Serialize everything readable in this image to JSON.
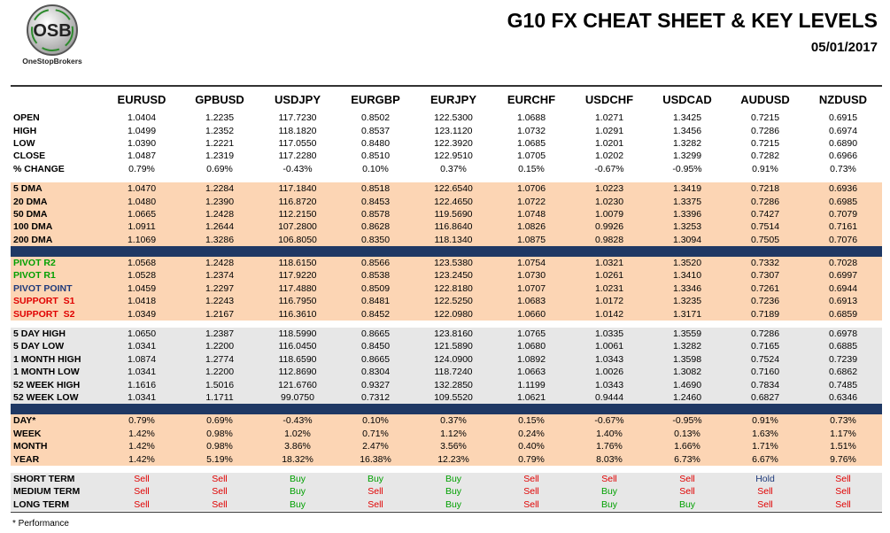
{
  "header": {
    "logo_text": "OSB",
    "logo_caption": "OneStopBrokers",
    "title": "G10 FX CHEAT SHEET & KEY LEVELS",
    "date": "05/01/2017"
  },
  "table": {
    "columns": [
      "EURUSD",
      "GPBUSD",
      "USDJPY",
      "EURGBP",
      "EURJPY",
      "EURCHF",
      "USDCHF",
      "USDCAD",
      "AUDUSD",
      "NZDUSD"
    ],
    "sections": [
      {
        "rows": [
          {
            "label": "OPEN",
            "values": [
              "1.0404",
              "1.2235",
              "117.7230",
              "0.8502",
              "122.5300",
              "1.0688",
              "1.0271",
              "1.3425",
              "0.7215",
              "0.6915"
            ]
          },
          {
            "label": "HIGH",
            "values": [
              "1.0499",
              "1.2352",
              "118.1820",
              "0.8537",
              "123.1120",
              "1.0732",
              "1.0291",
              "1.3456",
              "0.7286",
              "0.6974"
            ]
          },
          {
            "label": "LOW",
            "values": [
              "1.0390",
              "1.2221",
              "117.0550",
              "0.8480",
              "122.3920",
              "1.0685",
              "1.0201",
              "1.3282",
              "0.7215",
              "0.6890"
            ]
          },
          {
            "label": "CLOSE",
            "values": [
              "1.0487",
              "1.2319",
              "117.2280",
              "0.8510",
              "122.9510",
              "1.0705",
              "1.0202",
              "1.3299",
              "0.7282",
              "0.6966"
            ]
          },
          {
            "label": "% CHANGE",
            "values": [
              "0.79%",
              "0.69%",
              "-0.43%",
              "0.10%",
              "0.37%",
              "0.15%",
              "-0.67%",
              "-0.95%",
              "0.91%",
              "0.73%"
            ]
          }
        ]
      },
      {
        "rows": [
          {
            "label": "5 DMA",
            "values": [
              "1.0470",
              "1.2284",
              "117.1840",
              "0.8518",
              "122.6540",
              "1.0706",
              "1.0223",
              "1.3419",
              "0.7218",
              "0.6936"
            ]
          },
          {
            "label": "20 DMA",
            "values": [
              "1.0480",
              "1.2390",
              "116.8720",
              "0.8453",
              "122.4650",
              "1.0722",
              "1.0230",
              "1.3375",
              "0.7286",
              "0.6985"
            ]
          },
          {
            "label": "50 DMA",
            "values": [
              "1.0665",
              "1.2428",
              "112.2150",
              "0.8578",
              "119.5690",
              "1.0748",
              "1.0079",
              "1.3396",
              "0.7427",
              "0.7079"
            ]
          },
          {
            "label": "100 DMA",
            "values": [
              "1.0911",
              "1.2644",
              "107.2800",
              "0.8628",
              "116.8640",
              "1.0826",
              "0.9926",
              "1.3253",
              "0.7514",
              "0.7161"
            ]
          },
          {
            "label": "200 DMA",
            "values": [
              "1.1069",
              "1.3286",
              "106.8050",
              "0.8350",
              "118.1340",
              "1.0875",
              "0.9828",
              "1.3094",
              "0.7505",
              "0.7076"
            ]
          }
        ]
      },
      {
        "rows": [
          {
            "label": "PIVOT R2",
            "color": "#00a000",
            "values": [
              "1.0568",
              "1.2428",
              "118.6150",
              "0.8566",
              "123.5380",
              "1.0754",
              "1.0321",
              "1.3520",
              "0.7332",
              "0.7028"
            ]
          },
          {
            "label": "PIVOT R1",
            "color": "#00a000",
            "values": [
              "1.0528",
              "1.2374",
              "117.9220",
              "0.8538",
              "123.2450",
              "1.0730",
              "1.0261",
              "1.3410",
              "0.7307",
              "0.6997"
            ]
          },
          {
            "label": "PIVOT POINT",
            "color": "#1f3a7a",
            "values": [
              "1.0459",
              "1.2297",
              "117.4880",
              "0.8509",
              "122.8180",
              "1.0707",
              "1.0231",
              "1.3346",
              "0.7261",
              "0.6944"
            ]
          },
          {
            "label": "SUPPORT  S1",
            "color": "#e00000",
            "values": [
              "1.0418",
              "1.2243",
              "116.7950",
              "0.8481",
              "122.5250",
              "1.0683",
              "1.0172",
              "1.3235",
              "0.7236",
              "0.6913"
            ]
          },
          {
            "label": "SUPPORT  S2",
            "color": "#e00000",
            "values": [
              "1.0349",
              "1.2167",
              "116.3610",
              "0.8452",
              "122.0980",
              "1.0660",
              "1.0142",
              "1.3171",
              "0.7189",
              "0.6859"
            ]
          }
        ]
      },
      {
        "rows": [
          {
            "label": "5 DAY HIGH",
            "values": [
              "1.0650",
              "1.2387",
              "118.5990",
              "0.8665",
              "123.8160",
              "1.0765",
              "1.0335",
              "1.3559",
              "0.7286",
              "0.6978"
            ]
          },
          {
            "label": "5 DAY LOW",
            "values": [
              "1.0341",
              "1.2200",
              "116.0450",
              "0.8450",
              "121.5890",
              "1.0680",
              "1.0061",
              "1.3282",
              "0.7165",
              "0.6885"
            ]
          },
          {
            "label": "1 MONTH HIGH",
            "values": [
              "1.0874",
              "1.2774",
              "118.6590",
              "0.8665",
              "124.0900",
              "1.0892",
              "1.0343",
              "1.3598",
              "0.7524",
              "0.7239"
            ]
          },
          {
            "label": "1 MONTH LOW",
            "values": [
              "1.0341",
              "1.2200",
              "112.8690",
              "0.8304",
              "118.7240",
              "1.0663",
              "1.0026",
              "1.3082",
              "0.7160",
              "0.6862"
            ]
          },
          {
            "label": "52 WEEK HIGH",
            "values": [
              "1.1616",
              "1.5016",
              "121.6760",
              "0.9327",
              "132.2850",
              "1.1199",
              "1.0343",
              "1.4690",
              "0.7834",
              "0.7485"
            ]
          },
          {
            "label": "52 WEEK LOW",
            "values": [
              "1.0341",
              "1.1711",
              "99.0750",
              "0.7312",
              "109.5520",
              "1.0621",
              "0.9444",
              "1.2460",
              "0.6827",
              "0.6346"
            ]
          }
        ]
      },
      {
        "rows": [
          {
            "label": "DAY*",
            "values": [
              "0.79%",
              "0.69%",
              "-0.43%",
              "0.10%",
              "0.37%",
              "0.15%",
              "-0.67%",
              "-0.95%",
              "0.91%",
              "0.73%"
            ]
          },
          {
            "label": "WEEK",
            "values": [
              "1.42%",
              "0.98%",
              "1.02%",
              "0.71%",
              "1.12%",
              "0.24%",
              "1.40%",
              "0.13%",
              "1.63%",
              "1.17%"
            ]
          },
          {
            "label": "MONTH",
            "values": [
              "1.42%",
              "0.98%",
              "3.86%",
              "2.47%",
              "3.56%",
              "0.40%",
              "1.76%",
              "1.66%",
              "1.71%",
              "1.51%"
            ]
          },
          {
            "label": "YEAR",
            "values": [
              "1.42%",
              "5.19%",
              "18.32%",
              "16.38%",
              "12.23%",
              "0.79%",
              "8.03%",
              "6.73%",
              "6.67%",
              "9.76%"
            ]
          }
        ]
      },
      {
        "rows": [
          {
            "label": "SHORT TERM",
            "values": [
              "Sell",
              "Sell",
              "Buy",
              "Buy",
              "Buy",
              "Sell",
              "Sell",
              "Sell",
              "Hold",
              "Sell"
            ]
          },
          {
            "label": "MEDIUM TERM",
            "values": [
              "Sell",
              "Sell",
              "Buy",
              "Sell",
              "Buy",
              "Sell",
              "Buy",
              "Sell",
              "Sell",
              "Sell"
            ]
          },
          {
            "label": "LONG TERM",
            "values": [
              "Sell",
              "Sell",
              "Buy",
              "Sell",
              "Buy",
              "Sell",
              "Buy",
              "Buy",
              "Sell",
              "Sell"
            ]
          }
        ]
      }
    ],
    "signal_colors": {
      "Sell": "#e00000",
      "Buy": "#00a000",
      "Hold": "#1f3a7a"
    }
  },
  "footnote": "* Performance"
}
